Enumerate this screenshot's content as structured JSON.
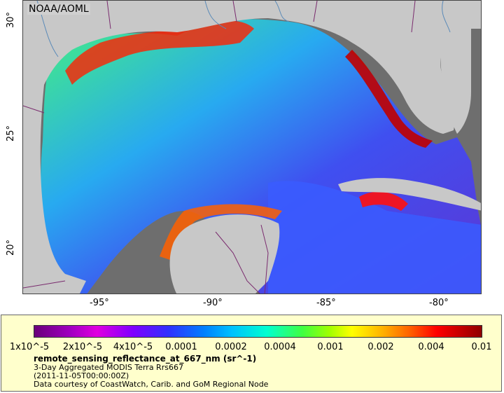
{
  "credit": "NOAA/AOML",
  "x_ticks": [
    "-95°",
    "-90°",
    "-85°",
    "-80°"
  ],
  "y_ticks": [
    "30°",
    "25°",
    "20°"
  ],
  "colorbar": {
    "labels": [
      "1x10^-5",
      "2x10^-5",
      "4x10^-5",
      "0.0001",
      "0.0002",
      "0.0004",
      "0.001",
      "0.002",
      "0.004",
      "0.01"
    ]
  },
  "legend": {
    "title": "remote_sensing_reflectance_at_667_nm (sr^-1)",
    "line1": "3-Day Aggregated MODIS Terra Rrs667",
    "line2": "(2011-11-05T00:00:00Z)",
    "line3": "Data courtesy of CoastWatch, Carib. and GoM Regional Node"
  },
  "colors": {
    "land": "#c8c8c8",
    "no_data": "#6e6e6e",
    "borders": "#7a2b6e",
    "rivers": "#5a8ab8"
  }
}
